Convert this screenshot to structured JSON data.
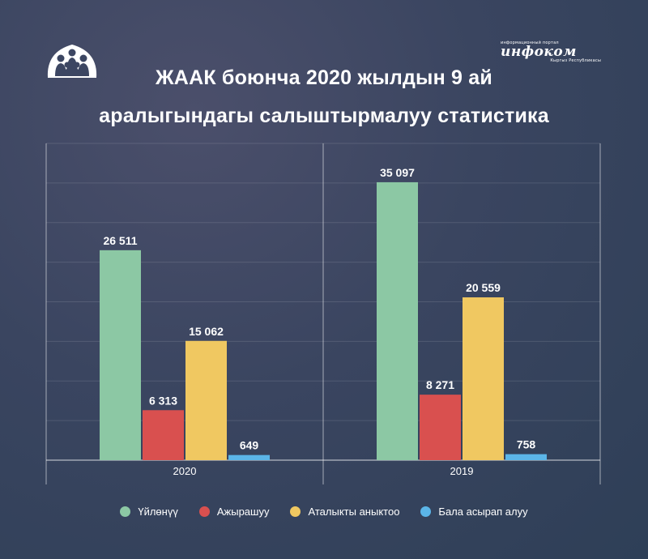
{
  "title_line1": "ЖААК боюнча 2020 жылдын 9 ай",
  "title_line2": "аралыгындагы салыштырмалуу статистика",
  "brand": {
    "tagline": "информационный портал",
    "name": "инфоком",
    "subline": "Кыргыз Республикасы"
  },
  "chart_data": {
    "type": "bar",
    "categories": [
      "2020",
      "2019"
    ],
    "series": [
      {
        "name": "Үйлөнүү",
        "color": "#8cc8a4",
        "values": [
          26511,
          35097
        ],
        "labels": [
          "26 511",
          "35 097"
        ]
      },
      {
        "name": "Ажырашуу",
        "color": "#d9504f",
        "values": [
          6313,
          8271
        ],
        "labels": [
          "6 313",
          "8 271"
        ]
      },
      {
        "name": "Аталыкты аныктоо",
        "color": "#f0c861",
        "values": [
          15062,
          20559
        ],
        "labels": [
          "15 062",
          "20 559"
        ]
      },
      {
        "name": "Бала асырап алуу",
        "color": "#5bb5e8",
        "values": [
          649,
          758
        ],
        "labels": [
          "649",
          "758"
        ]
      }
    ],
    "ylim": [
      0,
      40000
    ],
    "grid": true,
    "legend": "bottom"
  }
}
